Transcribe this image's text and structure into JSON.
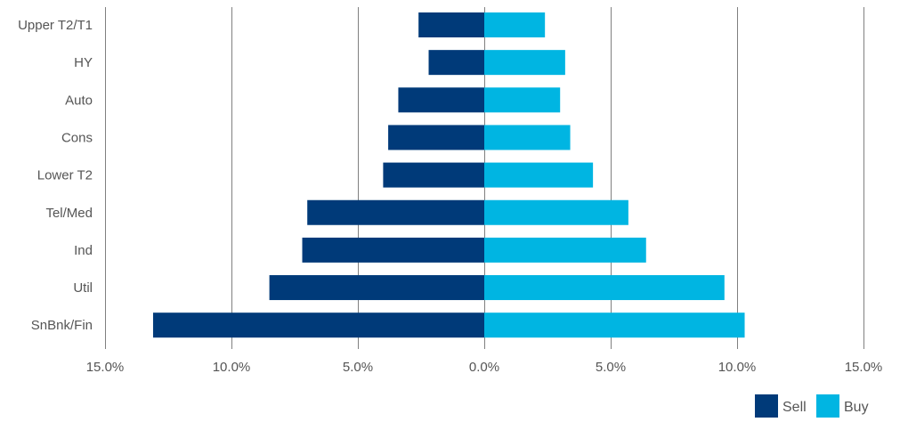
{
  "chart_data": {
    "type": "bar",
    "orientation": "horizontal",
    "stacked": "diverging",
    "categories": [
      "Upper T2/T1",
      "HY",
      "Auto",
      "Cons",
      "Lower T2",
      "Tel/Med",
      "Ind",
      "Util",
      "SnBnk/Fin"
    ],
    "series": [
      {
        "name": "Sell",
        "color": "#003a79",
        "values": [
          -2.6,
          -2.2,
          -3.4,
          -3.8,
          -4.0,
          -7.0,
          -7.2,
          -8.5,
          -13.1
        ]
      },
      {
        "name": "Buy",
        "color": "#00b5e2",
        "values": [
          2.4,
          3.2,
          3.0,
          3.4,
          4.3,
          5.7,
          6.4,
          9.5,
          10.3
        ]
      }
    ],
    "xlim": [
      -15,
      15
    ],
    "xticks": [
      -15,
      -10,
      -5,
      0,
      5,
      10,
      15
    ],
    "xtick_labels": [
      "15.0%",
      "10.0%",
      "5.0%",
      "0.0%",
      "5.0%",
      "10.0%",
      "15.0%"
    ],
    "title": "",
    "xlabel": "",
    "ylabel": "",
    "grid": "vertical",
    "legend_position": "bottom-right"
  }
}
